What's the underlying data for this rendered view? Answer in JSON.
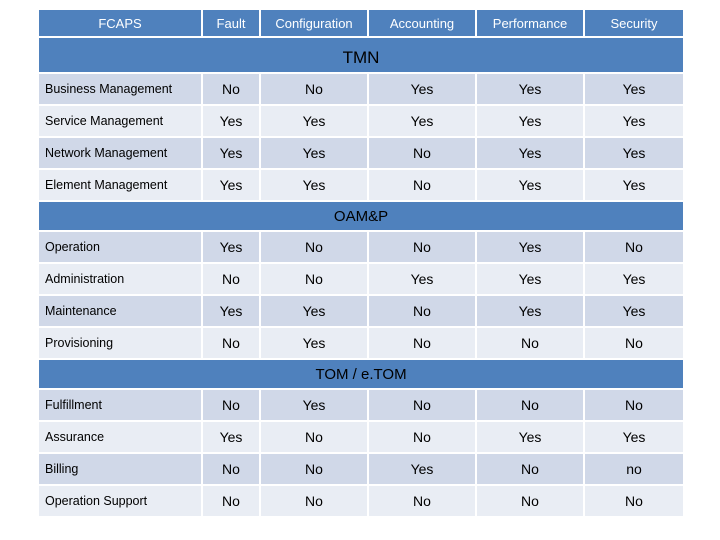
{
  "header": [
    "FCAPS",
    "Fault",
    "Configuration",
    "Accounting",
    "Performance",
    "Security"
  ],
  "sections": [
    {
      "title": "TMN",
      "rows": [
        {
          "label": "Business Management",
          "values": [
            "No",
            "No",
            "Yes",
            "Yes",
            "Yes"
          ]
        },
        {
          "label": "Service Management",
          "values": [
            "Yes",
            "Yes",
            "Yes",
            "Yes",
            "Yes"
          ]
        },
        {
          "label": "Network Management",
          "values": [
            "Yes",
            "Yes",
            "No",
            "Yes",
            "Yes"
          ]
        },
        {
          "label": "Element Management",
          "values": [
            "Yes",
            "Yes",
            "No",
            "Yes",
            "Yes"
          ]
        }
      ]
    },
    {
      "title": "OAM&P",
      "rows": [
        {
          "label": "Operation",
          "values": [
            "Yes",
            "No",
            "No",
            "Yes",
            "No"
          ]
        },
        {
          "label": "Administration",
          "values": [
            "No",
            "No",
            "Yes",
            "Yes",
            "Yes"
          ]
        },
        {
          "label": "Maintenance",
          "values": [
            "Yes",
            "Yes",
            "No",
            "Yes",
            "Yes"
          ]
        },
        {
          "label": "Provisioning",
          "values": [
            "No",
            "Yes",
            "No",
            "No",
            "No"
          ]
        }
      ]
    },
    {
      "title": "TOM / e.TOM",
      "rows": [
        {
          "label": "Fulfillment",
          "values": [
            "No",
            "Yes",
            "No",
            "No",
            "No"
          ]
        },
        {
          "label": "Assurance",
          "values": [
            "Yes",
            "No",
            "No",
            "Yes",
            "Yes"
          ]
        },
        {
          "label": "Billing",
          "values": [
            "No",
            "No",
            "Yes",
            "No",
            "no"
          ]
        },
        {
          "label": "Operation Support",
          "values": [
            "No",
            "No",
            "No",
            "No",
            "No"
          ]
        }
      ]
    }
  ]
}
